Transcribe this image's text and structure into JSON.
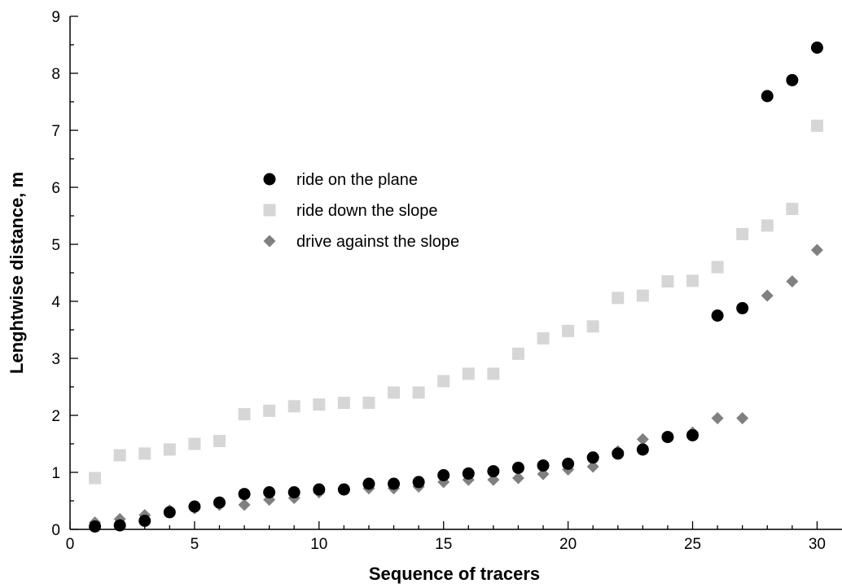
{
  "chart_data": {
    "type": "scatter",
    "xlabel": "Sequence of tracers",
    "ylabel": "Lenghtwise distance, m",
    "xlim": [
      0,
      31
    ],
    "ylim": [
      0,
      9
    ],
    "xticks": [
      0,
      5,
      10,
      15,
      20,
      25,
      30
    ],
    "yticks": [
      0,
      1,
      2,
      3,
      4,
      5,
      6,
      7,
      8,
      9
    ],
    "grid": false,
    "legend_position": "center-left",
    "x": [
      1,
      2,
      3,
      4,
      5,
      6,
      7,
      8,
      9,
      10,
      11,
      12,
      13,
      14,
      15,
      16,
      17,
      18,
      19,
      20,
      21,
      22,
      23,
      24,
      25,
      26,
      27,
      28,
      29,
      30
    ],
    "series": [
      {
        "name": "ride on the plane",
        "marker": "circle",
        "color": "#000000",
        "values": [
          0.05,
          0.07,
          0.15,
          0.3,
          0.4,
          0.47,
          0.62,
          0.65,
          0.65,
          0.7,
          0.7,
          0.8,
          0.8,
          0.83,
          0.95,
          0.98,
          1.02,
          1.08,
          1.12,
          1.15,
          1.26,
          1.33,
          1.4,
          1.62,
          1.65,
          3.75,
          3.88,
          7.6,
          7.88,
          8.45
        ]
      },
      {
        "name": "ride down the slope",
        "marker": "square",
        "color": "#d6d6d6",
        "values": [
          0.9,
          1.3,
          1.33,
          1.4,
          1.5,
          1.55,
          2.02,
          2.08,
          2.16,
          2.19,
          2.22,
          2.22,
          2.4,
          2.4,
          2.6,
          2.73,
          2.73,
          3.08,
          3.35,
          3.48,
          3.56,
          4.06,
          4.1,
          4.35,
          4.36,
          4.6,
          5.18,
          5.33,
          5.62,
          7.08
        ]
      },
      {
        "name": "drive against the slope",
        "marker": "diamond",
        "color": "#808080",
        "values": [
          0.12,
          0.18,
          0.25,
          0.33,
          0.37,
          0.43,
          0.43,
          0.52,
          0.55,
          0.65,
          0.7,
          0.72,
          0.72,
          0.75,
          0.83,
          0.87,
          0.87,
          0.9,
          0.97,
          1.05,
          1.1,
          1.37,
          1.58,
          1.62,
          1.7,
          1.95,
          1.95,
          4.1,
          4.35,
          4.9
        ]
      }
    ]
  }
}
